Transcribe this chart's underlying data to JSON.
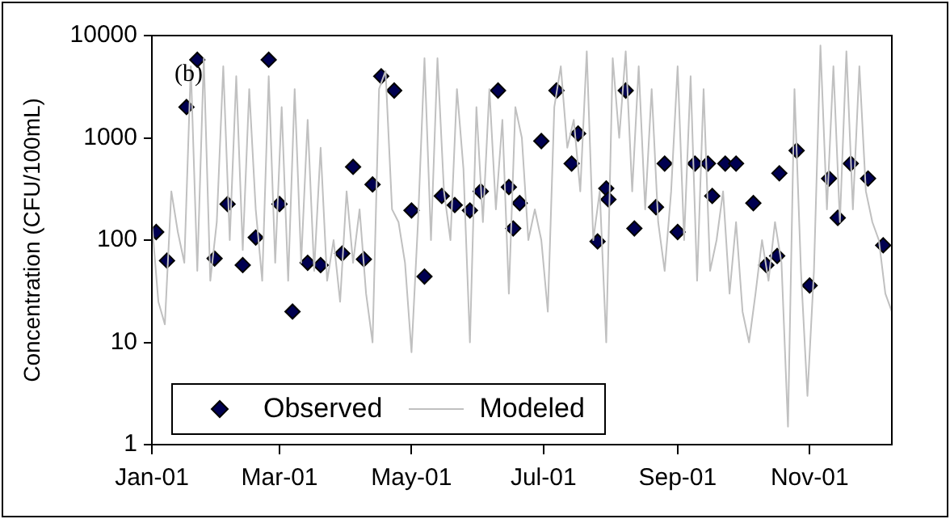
{
  "chart_data": {
    "type": "scatter",
    "ylabel": "Concentration (CFU/100mL)",
    "log": "y",
    "grid": false,
    "legend": "bottom left",
    "annotations": [
      "(b)"
    ],
    "xlim": [
      "--01-01",
      "--12-09"
    ],
    "xticks": [
      {
        "value": "--01-01",
        "label": "Jan-01"
      },
      {
        "value": "--03-01",
        "label": "Mar-01"
      },
      {
        "value": "--05-01",
        "label": "May-01"
      },
      {
        "value": "--07-01",
        "label": "Jul-01"
      },
      {
        "value": "--09-01",
        "label": "Sep-01"
      },
      {
        "value": "--11-01",
        "label": "Nov-01"
      }
    ],
    "ylim": [
      1,
      10000
    ],
    "yticks": [
      1,
      10,
      100,
      1000,
      10000
    ],
    "series": [
      {
        "name": "Modeled",
        "type": "line",
        "color": "#c0c0c0",
        "marker": "none",
        "line_style": "solid",
        "x": [
          "--01-01",
          "--01-04",
          "--01-07",
          "--01-10",
          "--01-13",
          "--01-16",
          "--01-19",
          "--01-22",
          "--01-25",
          "--01-28",
          "--01-31",
          "--02-03",
          "--02-06",
          "--02-09",
          "--02-12",
          "--02-15",
          "--02-18",
          "--02-21",
          "--02-24",
          "--02-27",
          "--03-02",
          "--03-05",
          "--03-08",
          "--03-11",
          "--03-14",
          "--03-17",
          "--03-20",
          "--03-23",
          "--03-26",
          "--03-29",
          "--04-01",
          "--04-04",
          "--04-07",
          "--04-10",
          "--04-13",
          "--04-16",
          "--04-19",
          "--04-22",
          "--04-25",
          "--04-28",
          "--05-01",
          "--05-04",
          "--05-07",
          "--05-10",
          "--05-13",
          "--05-16",
          "--05-19",
          "--05-22",
          "--05-25",
          "--05-28",
          "--05-31",
          "--06-03",
          "--06-06",
          "--06-09",
          "--06-12",
          "--06-15",
          "--06-18",
          "--06-21",
          "--06-24",
          "--06-27",
          "--06-30",
          "--07-03",
          "--07-06",
          "--07-09",
          "--07-12",
          "--07-15",
          "--07-18",
          "--07-21",
          "--07-24",
          "--07-27",
          "--07-30",
          "--08-02",
          "--08-05",
          "--08-08",
          "--08-11",
          "--08-14",
          "--08-17",
          "--08-20",
          "--08-23",
          "--08-26",
          "--08-29",
          "--09-01",
          "--09-04",
          "--09-07",
          "--09-10",
          "--09-13",
          "--09-16",
          "--09-19",
          "--09-22",
          "--09-25",
          "--09-28",
          "--10-01",
          "--10-04",
          "--10-07",
          "--10-10",
          "--10-13",
          "--10-16",
          "--10-19",
          "--10-22",
          "--10-25",
          "--10-28",
          "--10-31",
          "--11-03",
          "--11-06",
          "--11-09",
          "--11-12",
          "--11-15",
          "--11-18",
          "--11-21",
          "--11-24",
          "--11-27",
          "--11-30",
          "--12-03",
          "--12-06",
          "--12-09"
        ],
        "values": [
          150,
          25,
          15,
          300,
          120,
          60,
          5000,
          50,
          6000,
          40,
          150,
          5000,
          100,
          4000,
          80,
          3000,
          200,
          40,
          4000,
          60,
          2000,
          40,
          3000,
          60,
          1500,
          50,
          800,
          40,
          100,
          25,
          300,
          60,
          200,
          30,
          10,
          3000,
          4500,
          200,
          150,
          60,
          8,
          150,
          6000,
          100,
          6000,
          300,
          100,
          3000,
          500,
          10,
          2000,
          150,
          3000,
          200,
          1500,
          30,
          2000,
          1000,
          100,
          200,
          100,
          20,
          2000,
          5000,
          800,
          1500,
          300,
          7000,
          100,
          300,
          10,
          6000,
          1000,
          7000,
          300,
          5000,
          200,
          3000,
          150,
          50,
          300,
          5000,
          100,
          4000,
          40,
          3000,
          50,
          100,
          300,
          30,
          150,
          20,
          10,
          30,
          100,
          40,
          150,
          60,
          1.5,
          3000,
          50,
          3,
          50,
          8000,
          200,
          5000,
          150,
          7000,
          200,
          5000,
          300,
          150,
          100,
          30,
          20
        ]
      },
      {
        "name": "Observed",
        "type": "scatter",
        "color": "#000050",
        "marker": "diamond",
        "x": [
          "--01-03",
          "--01-08",
          "--01-17",
          "--01-22",
          "--01-30",
          "--02-05",
          "--02-12",
          "--02-18",
          "--02-24",
          "--03-01",
          "--03-07",
          "--03-14",
          "--03-20",
          "--03-30",
          "--04-04",
          "--04-09",
          "--04-13",
          "--04-17",
          "--04-23",
          "--05-01",
          "--05-07",
          "--05-15",
          "--05-21",
          "--05-28",
          "--06-02",
          "--06-10",
          "--06-15",
          "--06-17",
          "--06-20",
          "--06-30",
          "--07-07",
          "--07-14",
          "--07-17",
          "--07-26",
          "--07-30",
          "--07-31",
          "--08-08",
          "--08-12",
          "--08-22",
          "--08-26",
          "--09-01",
          "--09-09",
          "--09-15",
          "--09-17",
          "--09-23",
          "--09-28",
          "--10-06",
          "--10-12",
          "--10-17",
          "--10-18",
          "--10-26",
          "--11-01",
          "--11-10",
          "--11-14",
          "--11-20",
          "--11-28",
          "--12-05"
        ],
        "values": [
          120,
          63,
          2000,
          5800,
          66,
          225,
          57,
          106,
          5800,
          225,
          20,
          60,
          57,
          74,
          520,
          65,
          350,
          4000,
          2900,
          195,
          44,
          270,
          220,
          195,
          300,
          2900,
          330,
          130,
          230,
          930,
          2900,
          560,
          1100,
          97,
          320,
          250,
          2900,
          130,
          210,
          560,
          120,
          560,
          560,
          270,
          560,
          560,
          230,
          57,
          70,
          450,
          750,
          36,
          400,
          165,
          560,
          400,
          89
        ]
      }
    ]
  }
}
